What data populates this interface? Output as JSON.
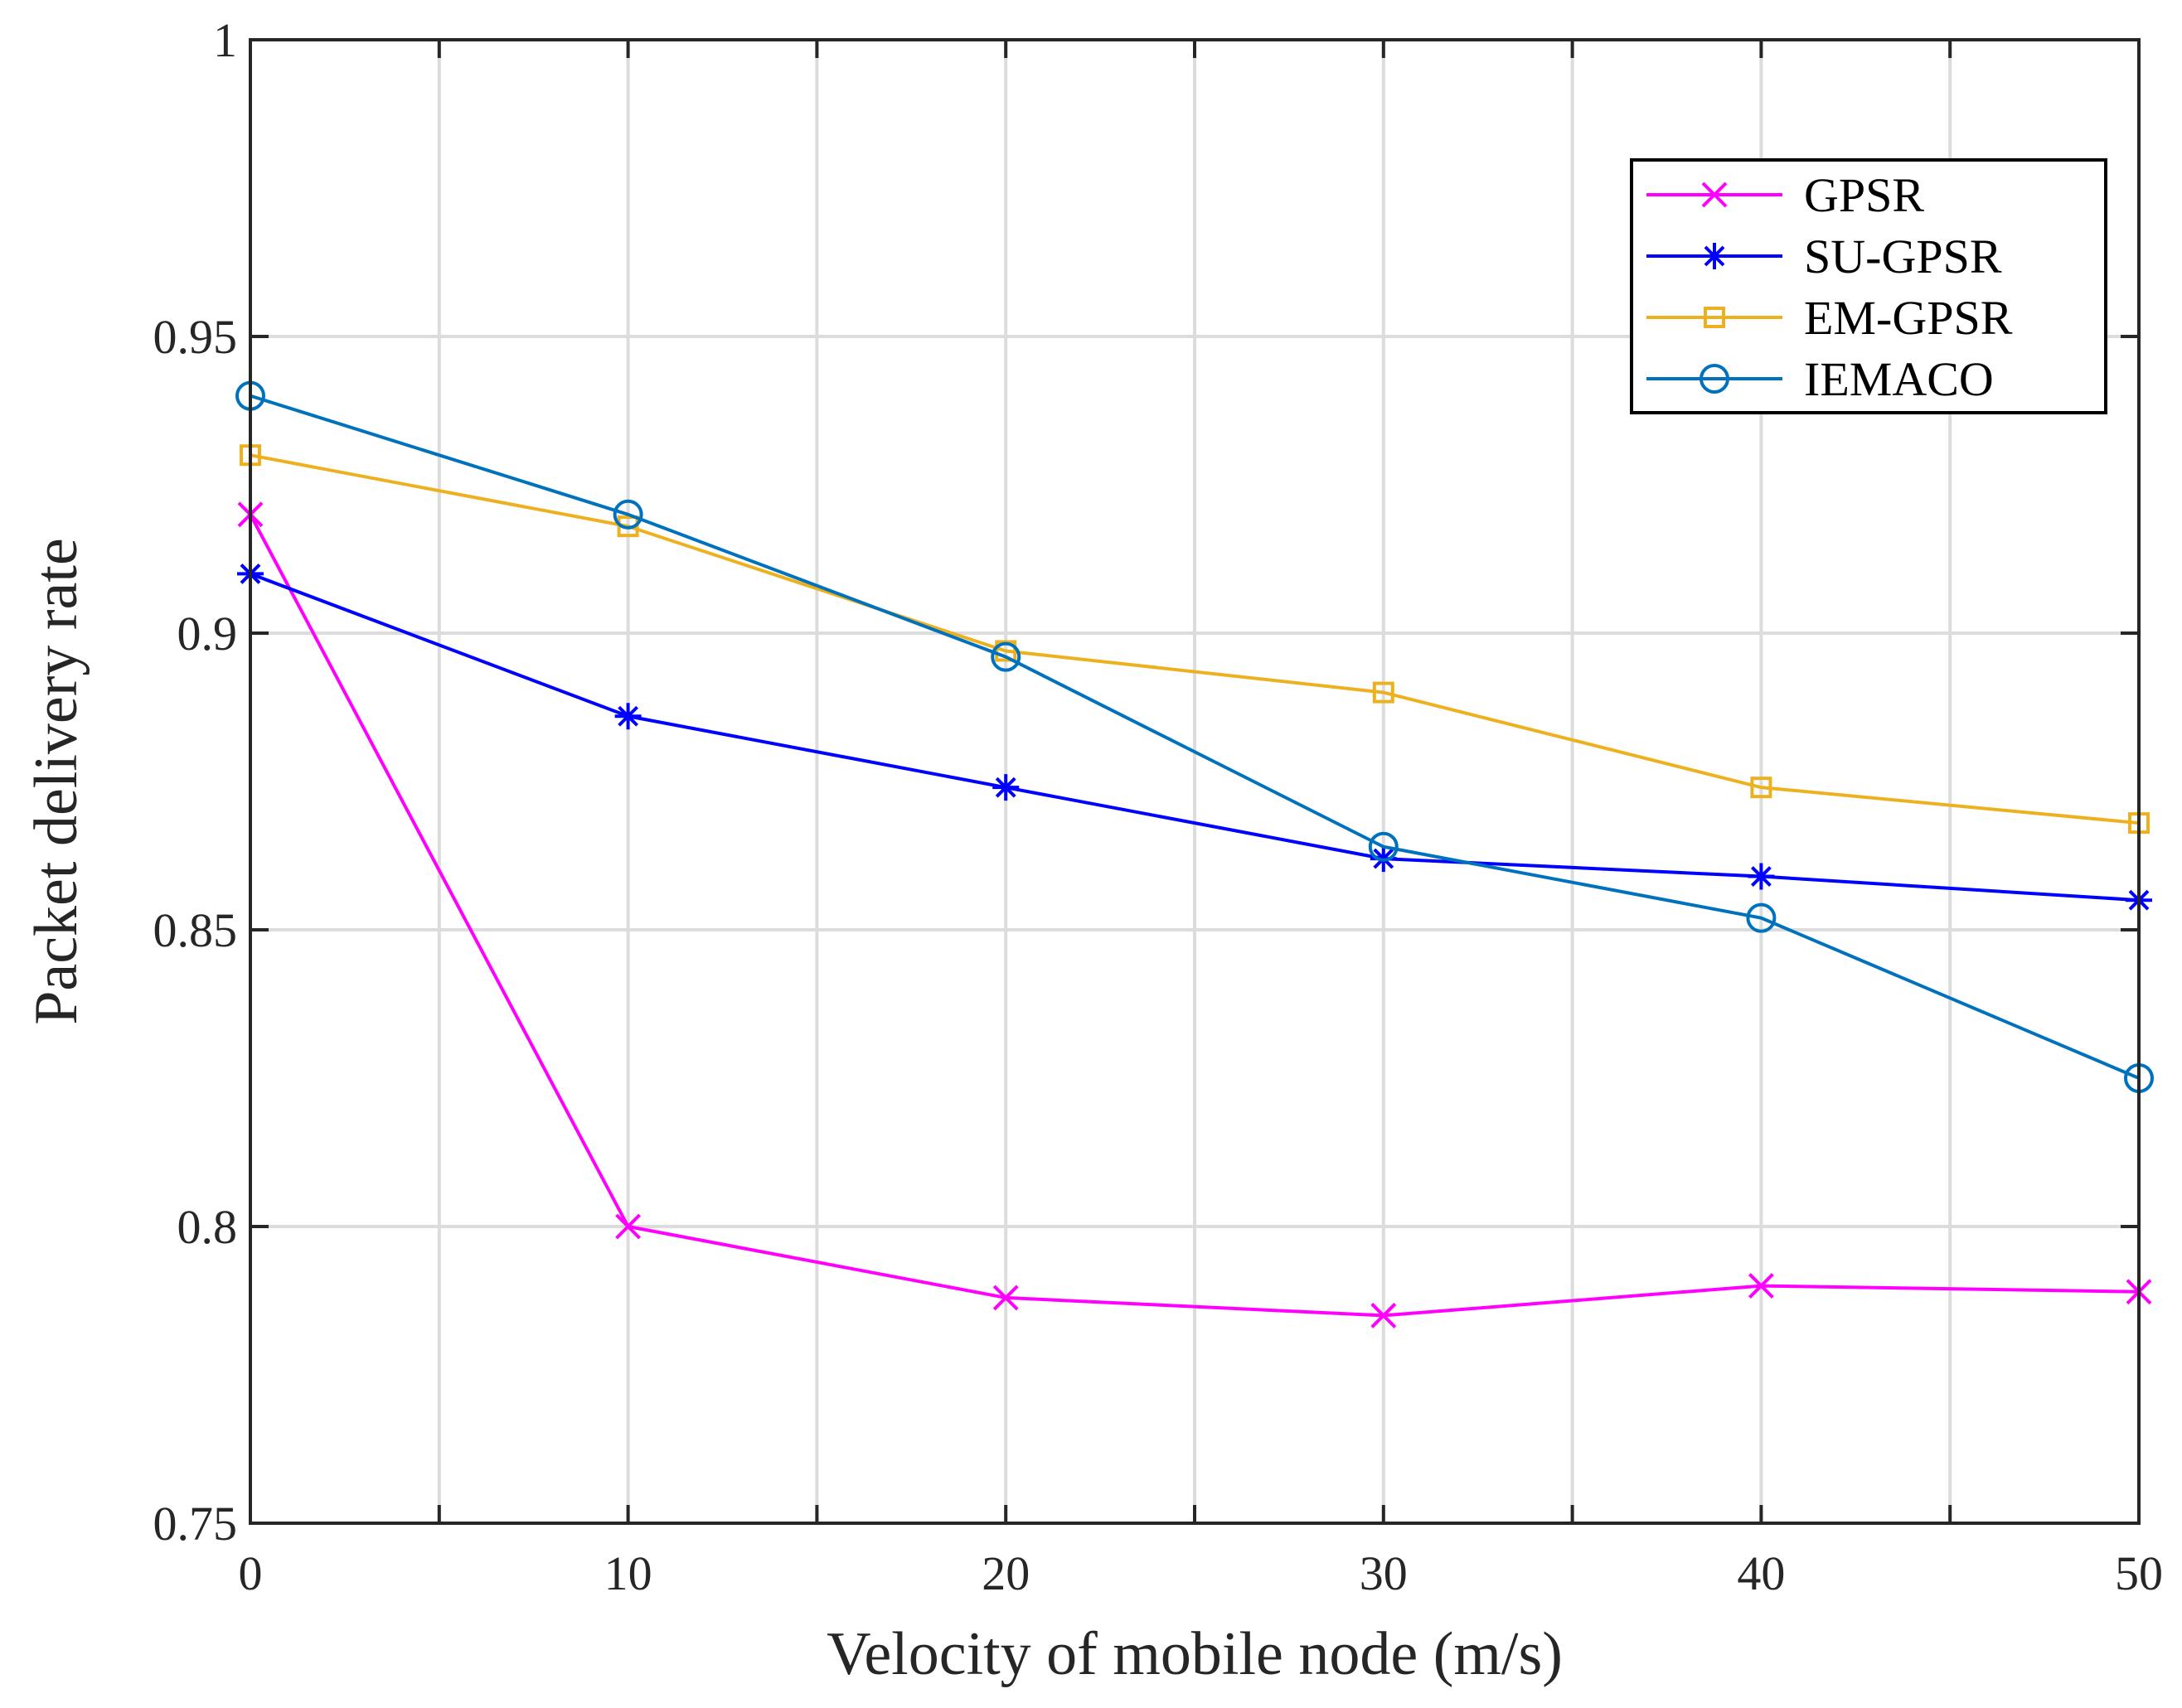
{
  "chart_data": {
    "type": "line",
    "title": "",
    "xlabel": "Velocity of mobile node (m/s)",
    "ylabel": "Packet delivery rate",
    "xlim": [
      0,
      50
    ],
    "ylim": [
      0.75,
      1
    ],
    "xticks": [
      0,
      10,
      20,
      30,
      40,
      50
    ],
    "xtick_labels": [
      "0",
      "10",
      "20",
      "30",
      "40",
      "50"
    ],
    "yticks": [
      0.75,
      0.8,
      0.85,
      0.9,
      0.95,
      1
    ],
    "ytick_labels": [
      "0.75",
      "0.8",
      "0.85",
      "0.9",
      "0.95",
      "1"
    ],
    "grid": true,
    "grid_x_step": 5,
    "grid_y_step": 0.05,
    "legend_position": "top-right",
    "x": [
      0,
      10,
      20,
      30,
      40,
      50
    ],
    "series": [
      {
        "name": "GPSR",
        "values": [
          0.92,
          0.8,
          0.788,
          0.785,
          0.79,
          0.789
        ],
        "color": "#ff00ff",
        "marker": "x"
      },
      {
        "name": "SU-GPSR",
        "values": [
          0.91,
          0.886,
          0.874,
          0.862,
          0.859,
          0.855
        ],
        "color": "#0000ff",
        "marker": "asterisk"
      },
      {
        "name": "EM-GPSR",
        "values": [
          0.93,
          0.918,
          0.897,
          0.89,
          0.874,
          0.868
        ],
        "color": "#edb120",
        "marker": "square"
      },
      {
        "name": "IEMACO",
        "values": [
          0.94,
          0.92,
          0.896,
          0.864,
          0.852,
          0.825
        ],
        "color": "#0072bd",
        "marker": "circle"
      }
    ]
  }
}
